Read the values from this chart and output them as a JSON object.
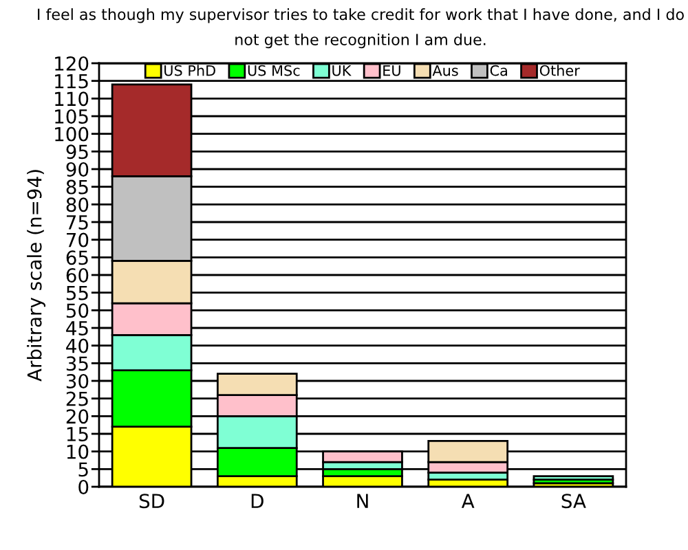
{
  "chart_data": {
    "type": "bar",
    "title": "I feel as though my supervisor tries to take credit for work that I have done, and I do not get the recognition I am due.",
    "ylabel": "Arbitrary scale (n=94)",
    "categories": [
      "SD",
      "D",
      "N",
      "A",
      "SA"
    ],
    "stacked": true,
    "series": [
      {
        "name": "US PhD",
        "color": "#ffff00",
        "values": [
          17,
          3,
          3,
          2,
          1
        ]
      },
      {
        "name": "US MSc",
        "color": "#00ff00",
        "values": [
          16,
          8,
          2,
          0,
          1
        ]
      },
      {
        "name": "UK",
        "color": "#7fffd4",
        "values": [
          10,
          9,
          2,
          2,
          1
        ]
      },
      {
        "name": "EU",
        "color": "#ffc0cb",
        "values": [
          9,
          6,
          3,
          3,
          0
        ]
      },
      {
        "name": "Aus",
        "color": "#f5deb3",
        "values": [
          12,
          6,
          0,
          6,
          0
        ]
      },
      {
        "name": "Ca",
        "color": "#c0c0c0",
        "values": [
          24,
          0,
          0,
          0,
          0
        ]
      },
      {
        "name": "Other",
        "color": "#a52a2a",
        "values": [
          26,
          0,
          0,
          0,
          0
        ]
      }
    ],
    "ylim": [
      0,
      120
    ],
    "yticks": [
      0,
      5,
      10,
      15,
      20,
      25,
      30,
      35,
      40,
      45,
      50,
      55,
      60,
      65,
      70,
      75,
      80,
      85,
      90,
      95,
      100,
      105,
      110,
      115,
      120
    ],
    "grid": "y",
    "legend": "top"
  }
}
